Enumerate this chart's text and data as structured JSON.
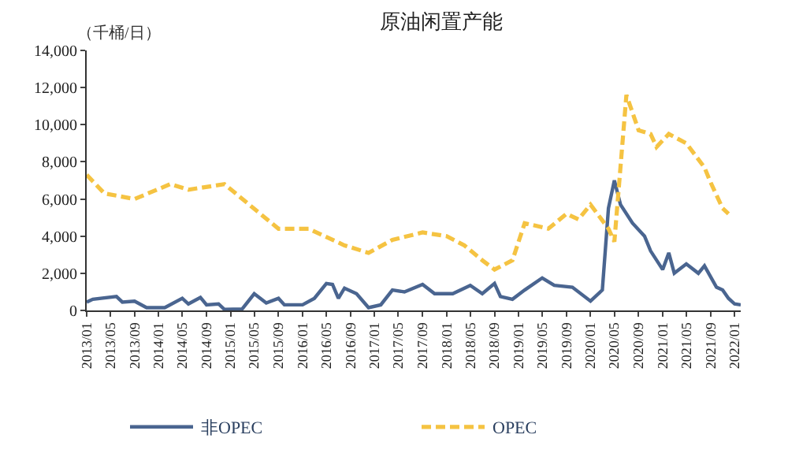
{
  "chart_data": {
    "type": "line",
    "title": "原油闲置产能",
    "ylabel": "（千桶/日）",
    "xlim": [
      "2013-01",
      "2022-02"
    ],
    "xticks": [
      {
        "value": "2013-01",
        "label": "2013/01"
      },
      {
        "value": "2013-05",
        "label": "2013/05"
      },
      {
        "value": "2013-09",
        "label": "2013/09"
      },
      {
        "value": "2014-01",
        "label": "2014/01"
      },
      {
        "value": "2014-05",
        "label": "2014/05"
      },
      {
        "value": "2014-09",
        "label": "2014/09"
      },
      {
        "value": "2015-01",
        "label": "2015/01"
      },
      {
        "value": "2015-05",
        "label": "2015/05"
      },
      {
        "value": "2015-09",
        "label": "2015/09"
      },
      {
        "value": "2016-01",
        "label": "2016/01"
      },
      {
        "value": "2016-05",
        "label": "2016/05"
      },
      {
        "value": "2016-09",
        "label": "2016/09"
      },
      {
        "value": "2017-01",
        "label": "2017/01"
      },
      {
        "value": "2017-05",
        "label": "2017/05"
      },
      {
        "value": "2017-09",
        "label": "2017/09"
      },
      {
        "value": "2018-01",
        "label": "2018/01"
      },
      {
        "value": "2018-05",
        "label": "2018/05"
      },
      {
        "value": "2018-09",
        "label": "2018/09"
      },
      {
        "value": "2019-01",
        "label": "2019/01"
      },
      {
        "value": "2019-05",
        "label": "2019/05"
      },
      {
        "value": "2019-09",
        "label": "2019/09"
      },
      {
        "value": "2020-01",
        "label": "2020/01"
      },
      {
        "value": "2020-05",
        "label": "2020/05"
      },
      {
        "value": "2020-09",
        "label": "2020/09"
      },
      {
        "value": "2021-01",
        "label": "2021/01"
      },
      {
        "value": "2021-05",
        "label": "2021/05"
      },
      {
        "value": "2021-09",
        "label": "2021/09"
      },
      {
        "value": "2022-01",
        "label": "2022/01"
      }
    ],
    "ylim": [
      0,
      14000
    ],
    "yticks": [
      0,
      {
        "value": 2000,
        "label": "2,000"
      },
      {
        "value": 4000,
        "label": "4,000"
      },
      {
        "value": 6000,
        "label": "6,000"
      },
      {
        "value": 8000,
        "label": "8,000"
      },
      {
        "value": 10000,
        "label": "10,000"
      },
      {
        "value": 12000,
        "label": "12,000"
      },
      {
        "value": 14000,
        "label": "14,000"
      }
    ],
    "legend": "bottom",
    "marker": "none",
    "series": [
      {
        "name": "非OPEC",
        "color": "#4a6590",
        "line_style": "solid",
        "x": [
          "2013-01",
          "2013-02",
          "2013-06",
          "2013-07",
          "2013-09",
          "2013-11",
          "2014-02",
          "2014-05",
          "2014-06",
          "2014-08",
          "2014-09",
          "2014-11",
          "2014-12",
          "2015-03",
          "2015-05",
          "2015-07",
          "2015-09",
          "2015-10",
          "2016-01",
          "2016-03",
          "2016-05",
          "2016-06",
          "2016-07",
          "2016-08",
          "2016-10",
          "2016-12",
          "2017-02",
          "2017-04",
          "2017-06",
          "2017-09",
          "2017-11",
          "2018-02",
          "2018-05",
          "2018-07",
          "2018-09",
          "2018-10",
          "2018-12",
          "2019-02",
          "2019-05",
          "2019-07",
          "2019-10",
          "2020-01",
          "2020-03",
          "2020-04",
          "2020-05",
          "2020-06",
          "2020-08",
          "2020-10",
          "2020-11",
          "2021-01",
          "2021-02",
          "2021-03",
          "2021-05",
          "2021-07",
          "2021-08",
          "2021-10",
          "2021-11",
          "2021-12",
          "2022-01",
          "2022-02"
        ],
        "values": [
          450,
          600,
          750,
          450,
          500,
          150,
          150,
          650,
          350,
          700,
          300,
          350,
          50,
          80,
          900,
          400,
          650,
          300,
          300,
          650,
          1450,
          1400,
          650,
          1200,
          900,
          150,
          300,
          1100,
          1000,
          1400,
          900,
          900,
          1350,
          900,
          1450,
          750,
          600,
          1100,
          1750,
          1350,
          1250,
          500,
          1100,
          5500,
          7000,
          5700,
          4700,
          4000,
          3200,
          2200,
          3100,
          2000,
          2500,
          2000,
          2400,
          1250,
          1100,
          650,
          350,
          300
        ]
      },
      {
        "name": "OPEC",
        "color": "#f5c342",
        "line_style": "dashed",
        "x": [
          "2013-01",
          "2013-04",
          "2013-09",
          "2014-03",
          "2014-06",
          "2014-12",
          "2015-06",
          "2015-09",
          "2016-02",
          "2016-08",
          "2016-12",
          "2017-04",
          "2017-09",
          "2018-01",
          "2018-04",
          "2018-07",
          "2018-09",
          "2018-12",
          "2019-02",
          "2019-06",
          "2019-09",
          "2019-11",
          "2020-01",
          "2020-04",
          "2020-05",
          "2020-07",
          "2020-09",
          "2020-11",
          "2020-12",
          "2021-02",
          "2021-05",
          "2021-08",
          "2021-09",
          "2021-11",
          "2021-12"
        ],
        "values": [
          7300,
          6300,
          6000,
          6800,
          6500,
          6800,
          5200,
          4400,
          4400,
          3500,
          3100,
          3800,
          4200,
          4000,
          3500,
          2700,
          2200,
          2700,
          4700,
          4400,
          5200,
          4900,
          5700,
          4400,
          3700,
          11600,
          9700,
          9500,
          8800,
          9500,
          9000,
          7700,
          6900,
          5500,
          5200
        ]
      }
    ]
  }
}
